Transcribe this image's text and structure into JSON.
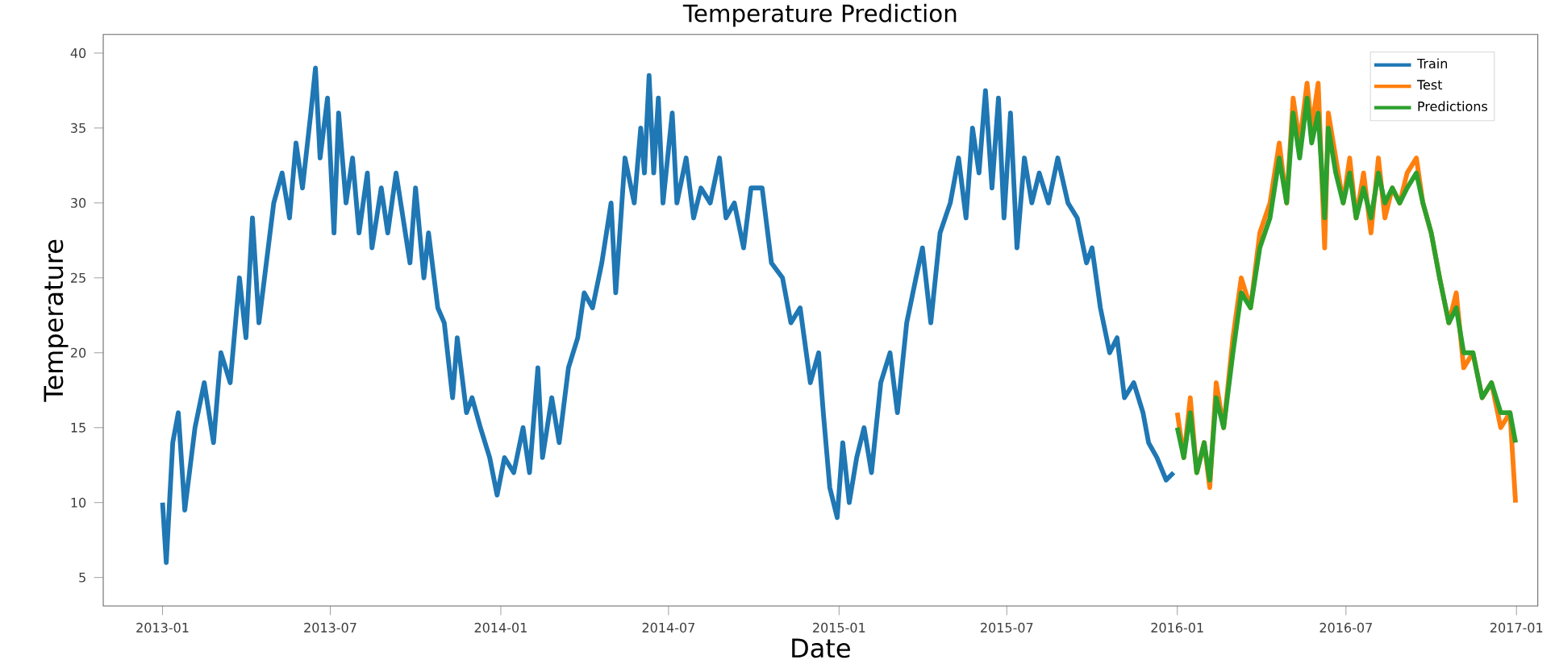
{
  "chart_data": {
    "type": "line",
    "title": "Temperature Prediction",
    "xlabel": "Date",
    "ylabel": "Temperature",
    "legend": "top right",
    "grid": false,
    "xlim": [
      "2012-10-29",
      "2017-01-24"
    ],
    "ylim": [
      3.1,
      41.25
    ],
    "xticks": [
      "2013-01",
      "2013-07",
      "2014-01",
      "2014-07",
      "2015-01",
      "2015-07",
      "2016-01",
      "2016-07",
      "2017-01"
    ],
    "yticks": [
      5,
      10,
      15,
      20,
      25,
      30,
      35,
      40
    ],
    "series": [
      {
        "name": "Train",
        "color": "#1f77b4",
        "x": [
          "2013-01-01",
          "2013-01-05",
          "2013-01-12",
          "2013-01-18",
          "2013-01-25",
          "2013-02-05",
          "2013-02-15",
          "2013-02-25",
          "2013-03-05",
          "2013-03-15",
          "2013-03-25",
          "2013-04-01",
          "2013-04-08",
          "2013-04-15",
          "2013-04-25",
          "2013-05-01",
          "2013-05-10",
          "2013-05-18",
          "2013-05-25",
          "2013-06-01",
          "2013-06-10",
          "2013-06-15",
          "2013-06-20",
          "2013-06-28",
          "2013-07-05",
          "2013-07-10",
          "2013-07-18",
          "2013-07-25",
          "2013-08-01",
          "2013-08-10",
          "2013-08-15",
          "2013-08-25",
          "2013-09-01",
          "2013-09-10",
          "2013-09-15",
          "2013-09-25",
          "2013-10-01",
          "2013-10-10",
          "2013-10-15",
          "2013-10-25",
          "2013-11-01",
          "2013-11-10",
          "2013-11-15",
          "2013-11-25",
          "2013-12-01",
          "2013-12-10",
          "2013-12-20",
          "2013-12-28",
          "2014-01-05",
          "2014-01-15",
          "2014-01-25",
          "2014-02-01",
          "2014-02-10",
          "2014-02-15",
          "2014-02-25",
          "2014-03-05",
          "2014-03-15",
          "2014-03-25",
          "2014-04-01",
          "2014-04-10",
          "2014-04-20",
          "2014-04-30",
          "2014-05-05",
          "2014-05-15",
          "2014-05-25",
          "2014-06-01",
          "2014-06-05",
          "2014-06-10",
          "2014-06-15",
          "2014-06-20",
          "2014-06-25",
          "2014-07-05",
          "2014-07-10",
          "2014-07-20",
          "2014-07-28",
          "2014-08-05",
          "2014-08-15",
          "2014-08-25",
          "2014-09-01",
          "2014-09-10",
          "2014-09-20",
          "2014-09-28",
          "2014-10-10",
          "2014-10-20",
          "2014-11-01",
          "2014-11-10",
          "2014-11-20",
          "2014-12-01",
          "2014-12-10",
          "2014-12-15",
          "2014-12-22",
          "2014-12-30",
          "2015-01-05",
          "2015-01-12",
          "2015-01-20",
          "2015-01-28",
          "2015-02-05",
          "2015-02-15",
          "2015-02-25",
          "2015-03-05",
          "2015-03-15",
          "2015-03-25",
          "2015-04-01",
          "2015-04-10",
          "2015-04-20",
          "2015-05-01",
          "2015-05-10",
          "2015-05-18",
          "2015-05-25",
          "2015-06-01",
          "2015-06-08",
          "2015-06-15",
          "2015-06-22",
          "2015-06-28",
          "2015-07-05",
          "2015-07-12",
          "2015-07-20",
          "2015-07-28",
          "2015-08-05",
          "2015-08-15",
          "2015-08-25",
          "2015-09-05",
          "2015-09-15",
          "2015-09-25",
          "2015-10-01",
          "2015-10-10",
          "2015-10-20",
          "2015-10-28",
          "2015-11-05",
          "2015-11-15",
          "2015-11-25",
          "2015-12-01",
          "2015-12-10",
          "2015-12-20",
          "2015-12-28"
        ],
        "values": [
          10,
          6,
          14,
          16,
          9.5,
          15,
          18,
          14,
          20,
          18,
          25,
          21,
          29,
          22,
          27,
          30,
          32,
          29,
          34,
          31,
          36,
          39,
          33,
          37,
          28,
          36,
          30,
          33,
          28,
          32,
          27,
          31,
          28,
          32,
          30,
          26,
          31,
          25,
          28,
          23,
          22,
          17,
          21,
          16,
          17,
          15,
          13,
          10.5,
          13,
          12,
          15,
          12,
          19,
          13,
          17,
          14,
          19,
          21,
          24,
          23,
          26,
          30,
          24,
          33,
          30,
          35,
          32,
          38.5,
          32,
          37,
          30,
          36,
          30,
          33,
          29,
          31,
          30,
          33,
          29,
          30,
          27,
          31,
          31,
          26,
          25,
          22,
          23,
          18,
          20,
          16,
          11,
          9,
          14,
          10,
          13,
          15,
          12,
          18,
          20,
          16,
          22,
          25,
          27,
          22,
          28,
          30,
          33,
          29,
          35,
          32,
          37.5,
          31,
          37,
          29,
          36,
          27,
          33,
          30,
          32,
          30,
          33,
          30,
          29,
          26,
          27,
          23,
          20,
          21,
          17,
          18,
          16,
          14,
          13,
          11.5,
          12
        ]
      },
      {
        "name": "Test",
        "color": "#ff7f0e",
        "x": [
          "2016-01-01",
          "2016-01-08",
          "2016-01-15",
          "2016-01-22",
          "2016-01-30",
          "2016-02-05",
          "2016-02-12",
          "2016-02-20",
          "2016-03-01",
          "2016-03-10",
          "2016-03-20",
          "2016-03-30",
          "2016-04-10",
          "2016-04-20",
          "2016-04-28",
          "2016-05-05",
          "2016-05-12",
          "2016-05-20",
          "2016-05-25",
          "2016-06-01",
          "2016-06-08",
          "2016-06-12",
          "2016-06-20",
          "2016-06-28",
          "2016-07-05",
          "2016-07-12",
          "2016-07-20",
          "2016-07-28",
          "2016-08-05",
          "2016-08-12",
          "2016-08-20",
          "2016-08-28",
          "2016-09-05",
          "2016-09-15",
          "2016-09-22",
          "2016-10-01",
          "2016-10-10",
          "2016-10-20",
          "2016-10-28",
          "2016-11-05",
          "2016-11-15",
          "2016-11-25",
          "2016-12-05",
          "2016-12-15",
          "2016-12-25",
          "2016-12-31"
        ],
        "values": [
          16,
          13,
          17,
          12,
          14,
          11,
          18,
          15,
          21,
          25,
          23,
          28,
          30,
          34,
          30,
          37,
          34,
          38,
          35,
          38,
          27,
          36,
          33,
          30,
          33,
          29,
          32,
          28,
          33,
          29,
          31,
          30,
          32,
          33,
          30,
          28,
          25,
          22,
          24,
          19,
          20,
          17,
          18,
          15,
          16,
          10
        ]
      },
      {
        "name": "Predictions",
        "color": "#2ca02c",
        "x": [
          "2016-01-01",
          "2016-01-08",
          "2016-01-15",
          "2016-01-22",
          "2016-01-30",
          "2016-02-05",
          "2016-02-12",
          "2016-02-20",
          "2016-03-01",
          "2016-03-10",
          "2016-03-20",
          "2016-03-30",
          "2016-04-10",
          "2016-04-20",
          "2016-04-28",
          "2016-05-05",
          "2016-05-12",
          "2016-05-20",
          "2016-05-25",
          "2016-06-01",
          "2016-06-08",
          "2016-06-12",
          "2016-06-20",
          "2016-06-28",
          "2016-07-05",
          "2016-07-12",
          "2016-07-20",
          "2016-07-28",
          "2016-08-05",
          "2016-08-12",
          "2016-08-20",
          "2016-08-28",
          "2016-09-05",
          "2016-09-15",
          "2016-09-22",
          "2016-10-01",
          "2016-10-10",
          "2016-10-20",
          "2016-10-28",
          "2016-11-05",
          "2016-11-15",
          "2016-11-25",
          "2016-12-05",
          "2016-12-15",
          "2016-12-25",
          "2016-12-31"
        ],
        "values": [
          15,
          13,
          16,
          12,
          14,
          11.5,
          17,
          15,
          20,
          24,
          23,
          27,
          29,
          33,
          30,
          36,
          33,
          37,
          34,
          36,
          29,
          35,
          32,
          30,
          32,
          29,
          31,
          29,
          32,
          30,
          31,
          30,
          31,
          32,
          30,
          28,
          25,
          22,
          23,
          20,
          20,
          17,
          18,
          16,
          16,
          14
        ]
      }
    ]
  }
}
